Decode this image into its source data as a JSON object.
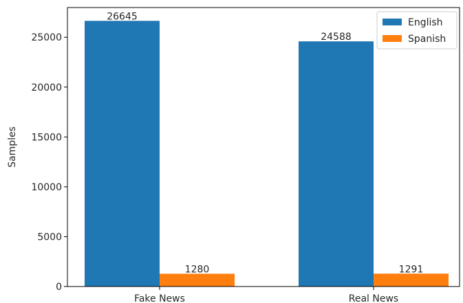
{
  "chart_data": {
    "type": "bar",
    "title": "",
    "xlabel": "",
    "ylabel": "Samples",
    "categories": [
      "Fake News",
      "Real News"
    ],
    "series": [
      {
        "name": "English",
        "values": [
          26645,
          24588
        ],
        "color": "#1f77b4"
      },
      {
        "name": "Spanish",
        "values": [
          1280,
          1291
        ],
        "color": "#ff7f0e"
      }
    ],
    "data_labels": [
      [
        "26645",
        "24588"
      ],
      [
        "1280",
        "1291"
      ]
    ],
    "ylim": [
      0,
      27977
    ],
    "yticks": [
      0,
      5000,
      10000,
      15000,
      20000,
      25000
    ],
    "ytick_labels": [
      "0",
      "5000",
      "10000",
      "15000",
      "20000",
      "25000"
    ],
    "grid": false,
    "legend_position": "top-right"
  }
}
